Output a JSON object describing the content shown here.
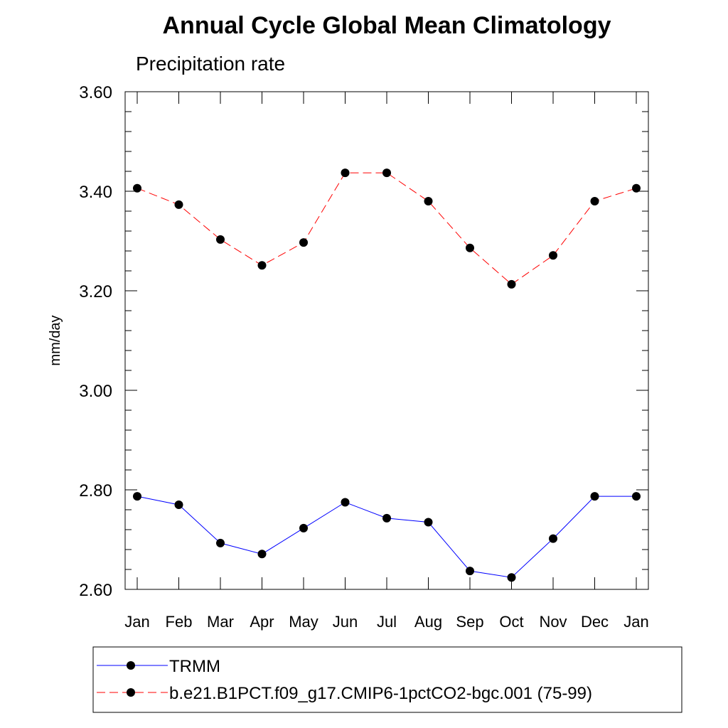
{
  "chart_data": {
    "type": "line",
    "title": "Annual Cycle Global Mean Climatology",
    "subtitle": "Precipitation rate",
    "ylabel": "mm/day",
    "xlabel": "",
    "categories": [
      "Jan",
      "Feb",
      "Mar",
      "Apr",
      "May",
      "Jun",
      "Jul",
      "Aug",
      "Sep",
      "Oct",
      "Nov",
      "Dec",
      "Jan"
    ],
    "ylim": [
      2.6,
      3.6
    ],
    "yticks": [
      "2.60",
      "2.80",
      "3.00",
      "3.20",
      "3.40",
      "3.60"
    ],
    "yticks_values": [
      2.6,
      2.8,
      3.0,
      3.2,
      3.4,
      3.6
    ],
    "grid": false,
    "legend_position": "bottom",
    "series": [
      {
        "name": "TRMM",
        "color": "#0000ff",
        "line_style": "solid",
        "marker": "filled-circle",
        "values": [
          2.787,
          2.77,
          2.693,
          2.671,
          2.723,
          2.775,
          2.743,
          2.735,
          2.637,
          2.624,
          2.702,
          2.787,
          2.787
        ]
      },
      {
        "name": "b.e21.B1PCT.f09_g17.CMIP6-1pctCO2-bgc.001 (75-99)",
        "color": "#ff0000",
        "line_style": "dashed",
        "marker": "filled-circle",
        "values": [
          3.406,
          3.373,
          3.303,
          3.251,
          3.297,
          3.437,
          3.437,
          3.38,
          3.286,
          3.213,
          3.271,
          3.38,
          3.406
        ]
      }
    ]
  }
}
